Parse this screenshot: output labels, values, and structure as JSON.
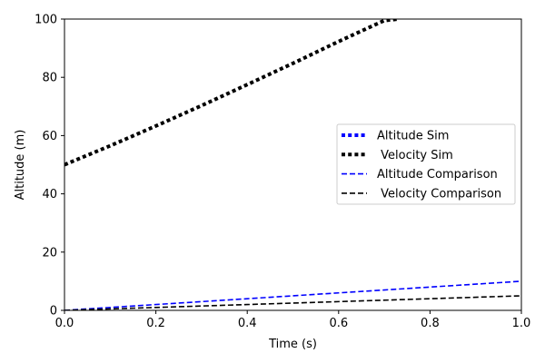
{
  "chart_data": {
    "type": "line",
    "title": "",
    "xlabel": "Time (s)",
    "ylabel": "Altitude (m)",
    "xlim": [
      0,
      1
    ],
    "ylim": [
      0,
      100
    ],
    "xticks": [
      0.0,
      0.2,
      0.4,
      0.6,
      0.8,
      1.0
    ],
    "xtick_labels": [
      "0.0",
      "0.2",
      "0.4",
      "0.6",
      "0.8",
      "1.0"
    ],
    "yticks": [
      0,
      20,
      40,
      60,
      80,
      100
    ],
    "ytick_labels": [
      "0",
      "20",
      "40",
      "60",
      "80",
      "100"
    ],
    "grid": false,
    "legend_position": "center-right",
    "series": [
      {
        "name": "Altitude Sim",
        "style": "dotted",
        "color": "#0000ff",
        "x": [],
        "y": []
      },
      {
        "name": " Velocity Sim",
        "style": "dotted",
        "color": "#000000",
        "x": [
          0.0,
          0.1,
          0.2,
          0.3,
          0.4,
          0.5,
          0.6,
          0.7,
          0.73
        ],
        "y": [
          50,
          56.5,
          63.3,
          70.3,
          77.5,
          84.8,
          92.3,
          99.5,
          100
        ]
      },
      {
        "name": "Altitude Comparison",
        "style": "dashed",
        "color": "#0000ff",
        "x": [
          0.0,
          0.2,
          0.4,
          0.6,
          0.8,
          1.0
        ],
        "y": [
          0,
          2,
          4,
          6,
          8,
          10
        ]
      },
      {
        "name": " Velocity Comparison",
        "style": "dashed",
        "color": "#000000",
        "x": [
          0.0,
          0.2,
          0.4,
          0.6,
          0.8,
          1.0
        ],
        "y": [
          0,
          1,
          2,
          3,
          4,
          5
        ]
      }
    ]
  }
}
